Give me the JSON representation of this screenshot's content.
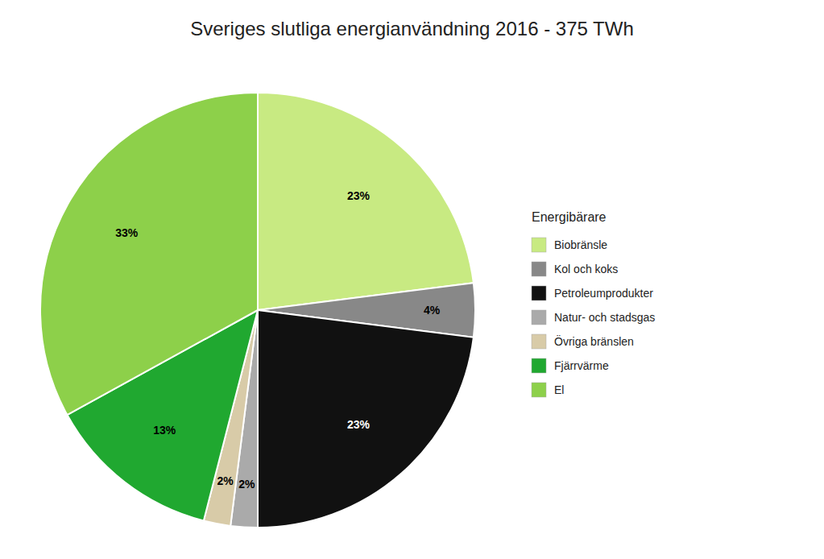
{
  "chart_data": {
    "type": "pie",
    "title": "Sveriges slutliga energianvändning  2016 - 375 TWh",
    "legend_title": "Energibärare",
    "categories": [
      "Biobränsle",
      "Kol och koks",
      "Petroleumprodukter",
      "Natur- och stadsgas",
      "Övriga bränslen",
      "Fjärrvärme",
      "El"
    ],
    "values": [
      23,
      4,
      23,
      2,
      2,
      13,
      33
    ],
    "value_labels": [
      "23%",
      "4%",
      "23%",
      "2%",
      "2%",
      "13%",
      "33%"
    ],
    "colors": [
      "#c8ea82",
      "#888888",
      "#111111",
      "#aaaaaa",
      "#d8cba8",
      "#20a830",
      "#8dd04a"
    ],
    "data_labels": true,
    "legend": "right"
  }
}
